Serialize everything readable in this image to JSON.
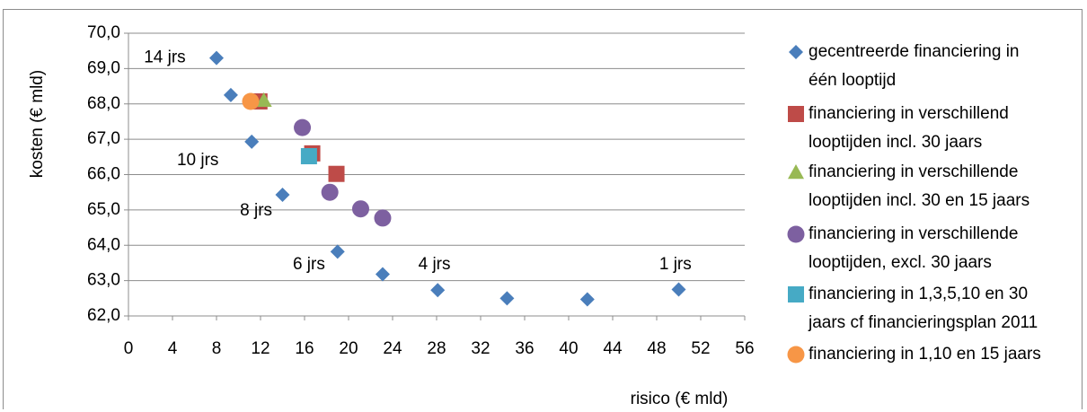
{
  "chart_data": {
    "type": "scatter",
    "xlabel": "risico (€ mld)",
    "ylabel": "kosten (€ mld)",
    "xlim": [
      0,
      56
    ],
    "ylim": [
      62.0,
      70.0
    ],
    "x_ticks": [
      0,
      4,
      8,
      12,
      16,
      20,
      24,
      28,
      32,
      36,
      40,
      44,
      48,
      52,
      56
    ],
    "x_tick_labels": [
      "0",
      "4",
      "8",
      "12",
      "16",
      "20",
      "24",
      "28",
      "32",
      "36",
      "40",
      "44",
      "48",
      "52",
      "56"
    ],
    "y_ticks": [
      62,
      63,
      64,
      65,
      66,
      67,
      68,
      69,
      70
    ],
    "y_tick_labels": [
      "62,0",
      "63,0",
      "64,0",
      "65,0",
      "66,0",
      "67,0",
      "68,0",
      "69,0",
      "70,0"
    ],
    "grid": "horizontal",
    "legend_position": "right",
    "series": [
      {
        "name": "gecentreerde financiering in één looptijd",
        "legend_lines": [
          "gecentreerde financiering in",
          "één looptijd"
        ],
        "marker": "diamond",
        "color": "#4a7ebb",
        "points": [
          {
            "x": 8.0,
            "y": 69.3
          },
          {
            "x": 9.3,
            "y": 68.25
          },
          {
            "x": 11.2,
            "y": 66.93
          },
          {
            "x": 14.0,
            "y": 65.43
          },
          {
            "x": 19.0,
            "y": 63.82
          },
          {
            "x": 23.1,
            "y": 63.18
          },
          {
            "x": 28.1,
            "y": 62.73
          },
          {
            "x": 34.4,
            "y": 62.5
          },
          {
            "x": 41.7,
            "y": 62.47
          },
          {
            "x": 50.0,
            "y": 62.75
          }
        ]
      },
      {
        "name": "financiering in verschillend looptijden incl. 30 jaars",
        "legend_lines": [
          "financiering in verschillend",
          "looptijden incl. 30 jaars"
        ],
        "marker": "square",
        "color": "#be4b48",
        "points": [
          {
            "x": 11.9,
            "y": 68.07
          },
          {
            "x": 16.7,
            "y": 66.6
          },
          {
            "x": 18.9,
            "y": 66.02
          }
        ]
      },
      {
        "name": "financiering in verschillende looptijden incl. 30 en 15 jaars",
        "legend_lines": [
          "financiering in verschillende",
          "looptijden incl. 30 en 15 jaars"
        ],
        "marker": "triangle",
        "color": "#98b954",
        "points": [
          {
            "x": 12.3,
            "y": 68.1
          }
        ]
      },
      {
        "name": "financiering in verschillende looptijden, excl. 30 jaars",
        "legend_lines": [
          "financiering in verschillende",
          "looptijden, excl. 30 jaars"
        ],
        "marker": "circle",
        "color": "#7d60a0",
        "points": [
          {
            "x": 15.8,
            "y": 67.33
          },
          {
            "x": 18.3,
            "y": 65.5
          },
          {
            "x": 21.1,
            "y": 65.03
          },
          {
            "x": 23.1,
            "y": 64.77
          }
        ]
      },
      {
        "name": "financiering in 1,3,5,10 en 30 jaars cf financieringsplan 2011",
        "legend_lines": [
          "financiering in 1,3,5,10 en 30",
          "jaars cf financieringsplan 2011"
        ],
        "marker": "square",
        "color": "#46aac5",
        "points": [
          {
            "x": 16.4,
            "y": 66.52
          }
        ]
      },
      {
        "name": "financiering in 1,10 en 15 jaars",
        "legend_lines": [
          "financiering in 1,10 en 15 jaars"
        ],
        "marker": "circle",
        "color": "#f79646",
        "points": [
          {
            "x": 11.1,
            "y": 68.07
          }
        ]
      }
    ],
    "annotations": [
      {
        "text": "14 jrs",
        "x": 3.3,
        "y": 69.3
      },
      {
        "text": "10 jrs",
        "x": 6.3,
        "y": 66.4
      },
      {
        "text": "8 jrs",
        "x": 11.6,
        "y": 64.97
      },
      {
        "text": "6 jrs",
        "x": 16.4,
        "y": 63.45
      },
      {
        "text": "4 jrs",
        "x": 27.8,
        "y": 63.45
      },
      {
        "text": "1 jrs",
        "x": 49.7,
        "y": 63.45
      }
    ]
  }
}
